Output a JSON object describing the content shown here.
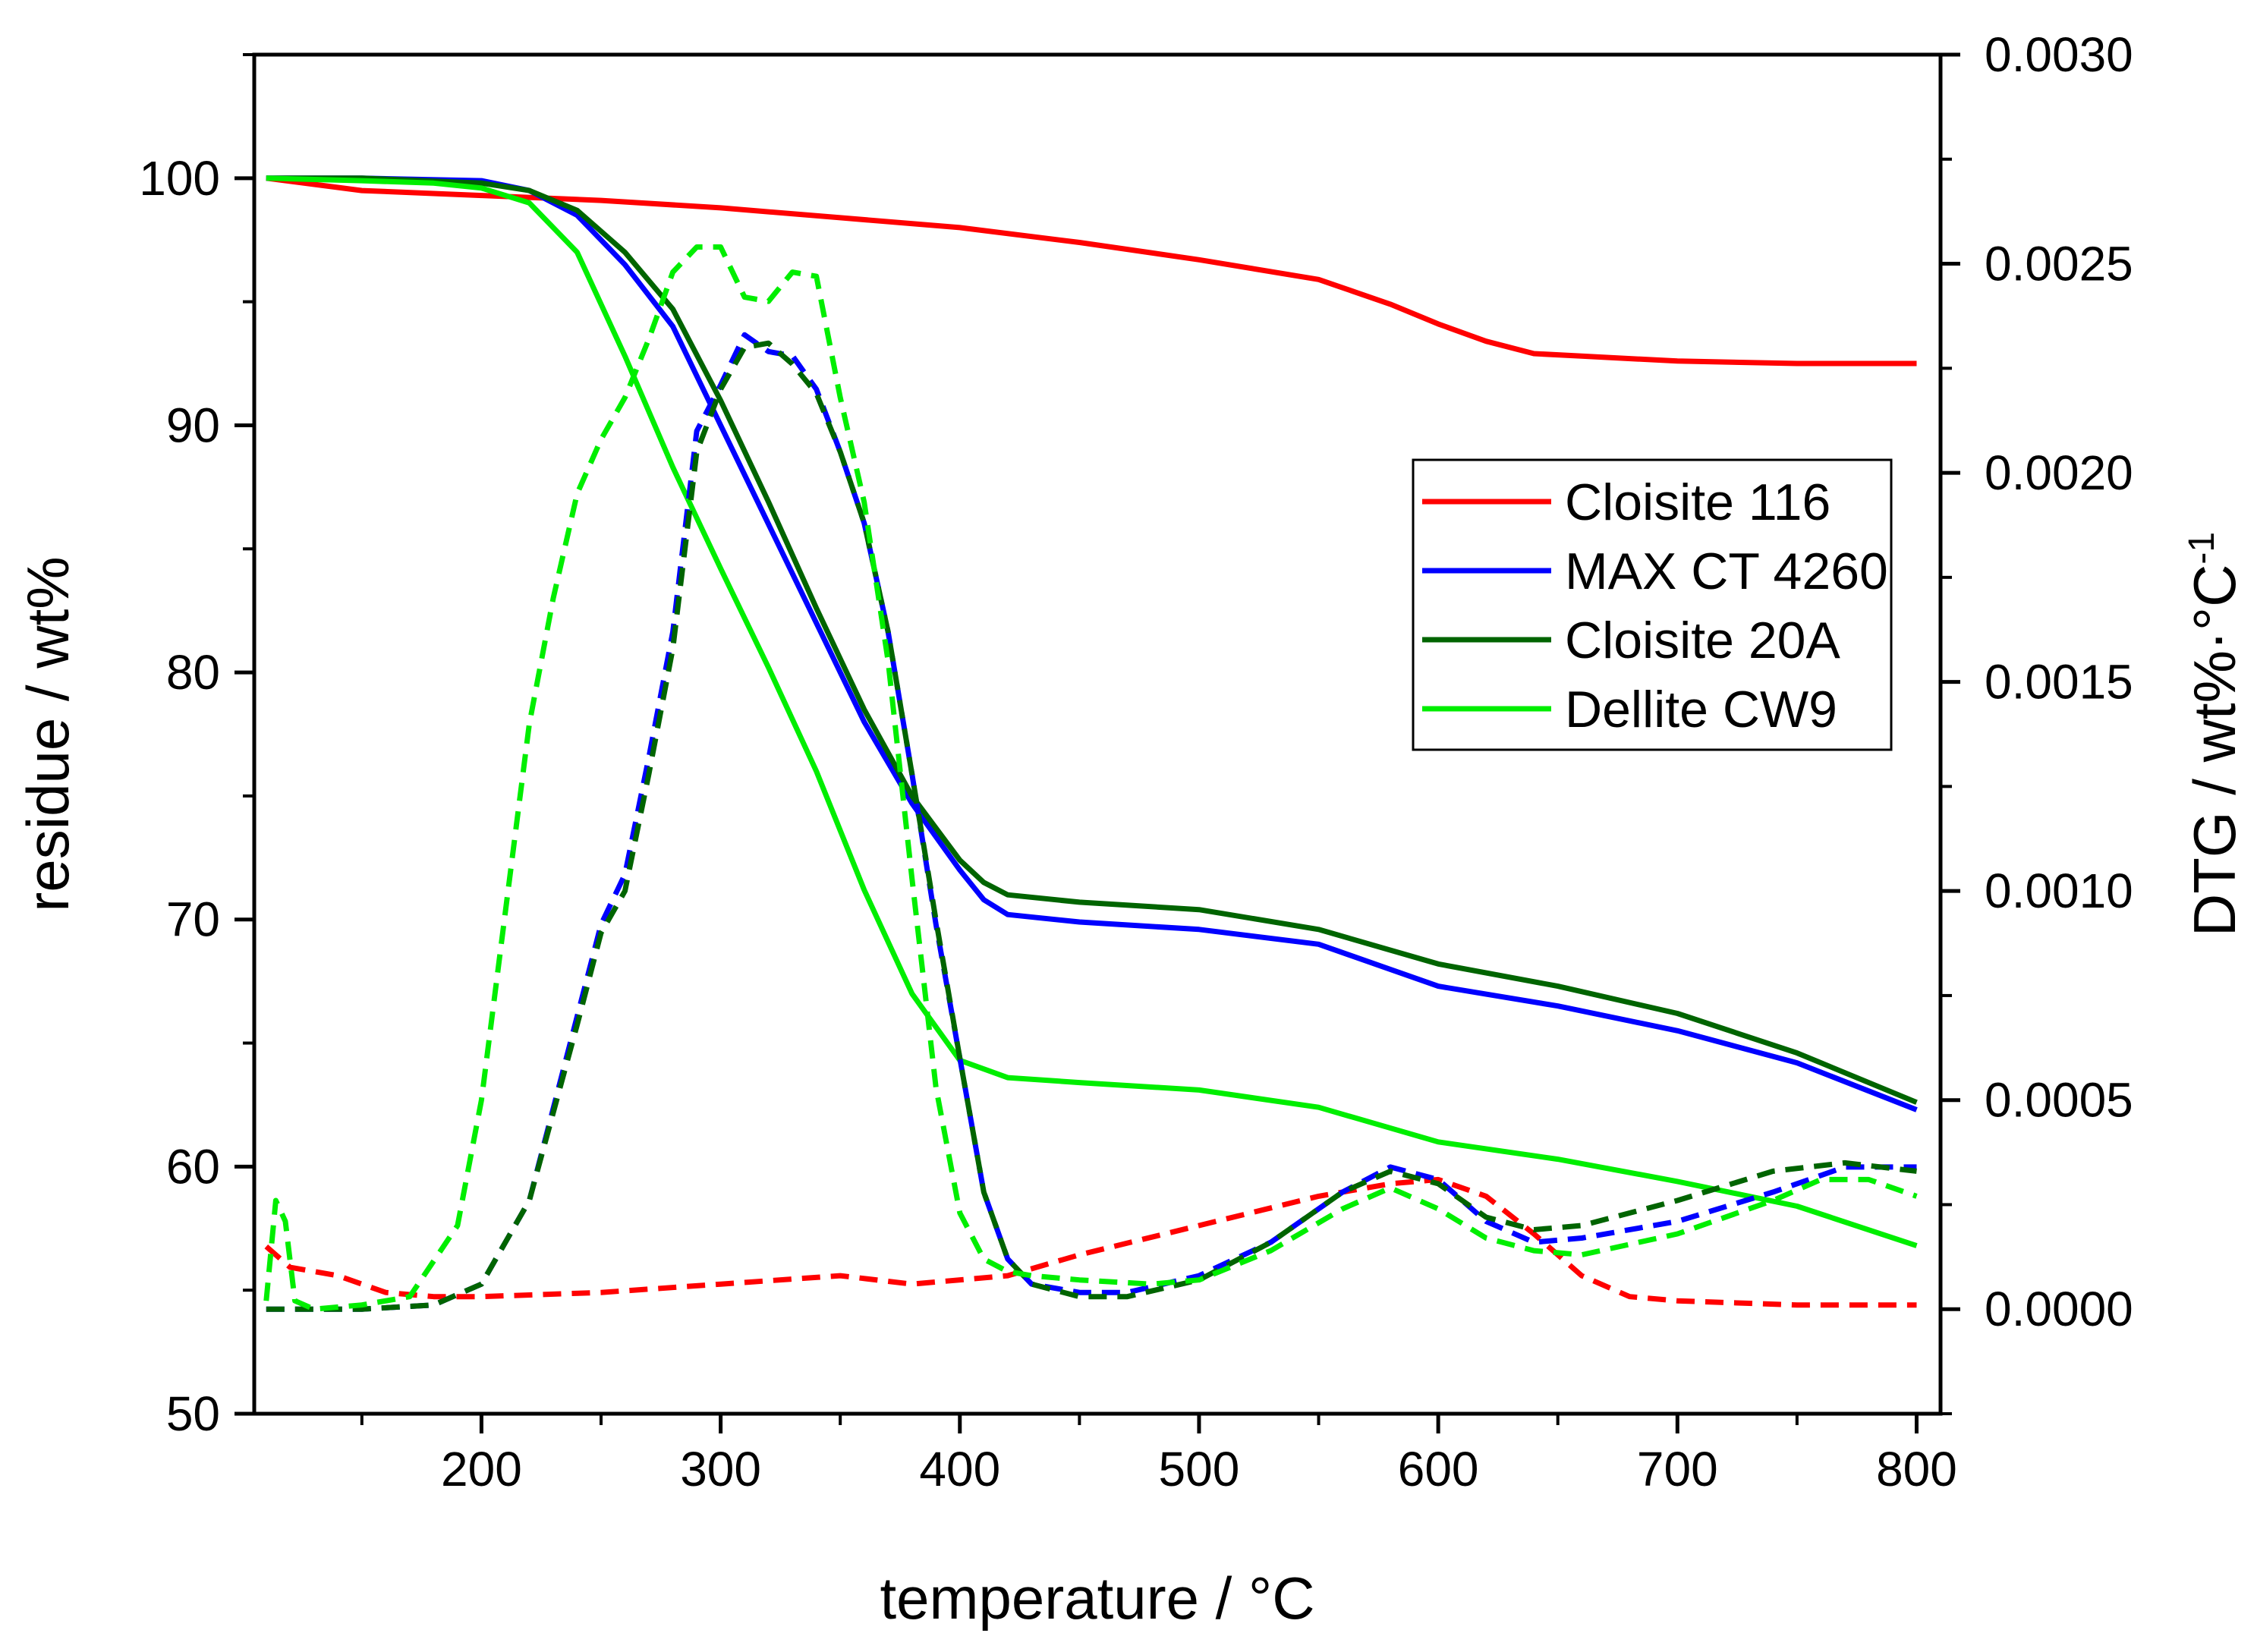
{
  "chart_data": {
    "type": "line",
    "xlabel": "temperature / °C",
    "ylabel": "residue / wt%",
    "y2label": "DTG / wt%·°C",
    "y2label_sup": "-1",
    "xlim": [
      105,
      810
    ],
    "ylim": [
      50,
      105
    ],
    "y2lim": [
      -0.00025,
      0.003
    ],
    "x_ticks": [
      "200",
      "300",
      "400",
      "500",
      "600",
      "700",
      "800"
    ],
    "y_ticks": [
      "50",
      "60",
      "70",
      "80",
      "90",
      "100"
    ],
    "y2_ticks": [
      "0.0000",
      "0.0005",
      "0.0010",
      "0.0015",
      "0.0020",
      "0.0025",
      "0.0030"
    ],
    "legend_position": "right-middle",
    "colors": {
      "Cloisite 116": "#ff0000",
      "MAX CT 4260": "#0000ff",
      "Cloisite 20A": "#006400",
      "Dellite CW9": "#00ee00"
    },
    "series": [
      {
        "name": "Cloisite 116",
        "axis": "left",
        "style": "solid",
        "x": [
          110,
          150,
          200,
          250,
          300,
          350,
          400,
          450,
          500,
          550,
          580,
          600,
          620,
          640,
          660,
          700,
          750,
          800
        ],
        "y": [
          100,
          99.5,
          99.3,
          99.1,
          98.8,
          98.4,
          98.0,
          97.4,
          96.7,
          95.9,
          94.9,
          94.1,
          93.4,
          92.9,
          92.8,
          92.6,
          92.5,
          92.5
        ]
      },
      {
        "name": "MAX CT 4260",
        "axis": "left",
        "style": "solid",
        "x": [
          110,
          150,
          200,
          220,
          240,
          260,
          280,
          300,
          320,
          340,
          360,
          380,
          400,
          410,
          420,
          450,
          500,
          550,
          600,
          650,
          700,
          750,
          800
        ],
        "y": [
          100,
          100,
          99.9,
          99.5,
          98.5,
          96.5,
          94.0,
          90.0,
          86.0,
          82.0,
          78.0,
          74.7,
          72.0,
          70.8,
          70.2,
          69.9,
          69.6,
          69.0,
          67.3,
          66.5,
          65.5,
          64.2,
          62.3
        ]
      },
      {
        "name": "Cloisite 20A",
        "axis": "left",
        "style": "solid",
        "x": [
          110,
          150,
          200,
          220,
          240,
          260,
          280,
          300,
          320,
          340,
          360,
          380,
          400,
          410,
          420,
          450,
          500,
          550,
          600,
          650,
          700,
          750,
          800
        ],
        "y": [
          100,
          100,
          99.8,
          99.5,
          98.7,
          97.0,
          94.7,
          91.0,
          86.9,
          82.6,
          78.5,
          75.0,
          72.4,
          71.5,
          71.0,
          70.7,
          70.4,
          69.6,
          68.2,
          67.3,
          66.2,
          64.6,
          62.6
        ]
      },
      {
        "name": "Dellite CW9",
        "axis": "left",
        "style": "solid",
        "x": [
          110,
          150,
          180,
          200,
          220,
          240,
          260,
          280,
          300,
          320,
          340,
          360,
          380,
          400,
          420,
          450,
          500,
          550,
          600,
          650,
          700,
          750,
          800
        ],
        "y": [
          100,
          99.9,
          99.8,
          99.6,
          99.0,
          97.0,
          92.8,
          88.3,
          84.2,
          80.2,
          76.0,
          71.2,
          67.0,
          64.3,
          63.6,
          63.4,
          63.1,
          62.4,
          61.0,
          60.3,
          59.4,
          58.4,
          56.8
        ]
      },
      {
        "name": "Cloisite 116",
        "axis": "right",
        "style": "dashed",
        "x": [
          110,
          120,
          140,
          160,
          180,
          200,
          250,
          300,
          350,
          380,
          420,
          450,
          500,
          550,
          580,
          600,
          620,
          640,
          660,
          680,
          700,
          750,
          800
        ],
        "y": [
          0.00015,
          0.0001,
          8e-05,
          4e-05,
          3e-05,
          3e-05,
          4e-05,
          6e-05,
          8e-05,
          6e-05,
          8e-05,
          0.00013,
          0.0002,
          0.00027,
          0.0003,
          0.00031,
          0.00027,
          0.00018,
          8e-05,
          3e-05,
          2e-05,
          1e-05,
          1e-05
        ]
      },
      {
        "name": "MAX CT 4260",
        "axis": "right",
        "style": "dashed",
        "x": [
          110,
          150,
          180,
          200,
          220,
          240,
          250,
          260,
          270,
          280,
          290,
          300,
          310,
          320,
          330,
          340,
          350,
          360,
          370,
          380,
          390,
          400,
          410,
          420,
          430,
          450,
          470,
          500,
          530,
          560,
          580,
          600,
          620,
          640,
          660,
          700,
          740,
          770,
          800
        ],
        "y": [
          0.0,
          0.0,
          1e-05,
          6e-05,
          0.00026,
          0.0007,
          0.00092,
          0.00104,
          0.00132,
          0.00162,
          0.0021,
          0.00221,
          0.00233,
          0.00229,
          0.00228,
          0.0022,
          0.00205,
          0.00188,
          0.00162,
          0.00128,
          0.00092,
          0.0006,
          0.00028,
          0.00012,
          6e-05,
          4e-05,
          4e-05,
          8e-05,
          0.00016,
          0.00028,
          0.00034,
          0.00031,
          0.00021,
          0.00016,
          0.00017,
          0.00021,
          0.00028,
          0.00034,
          0.00034
        ]
      },
      {
        "name": "Cloisite 20A",
        "axis": "right",
        "style": "dashed",
        "x": [
          110,
          150,
          180,
          200,
          220,
          240,
          250,
          260,
          270,
          280,
          290,
          300,
          310,
          320,
          330,
          340,
          350,
          360,
          370,
          380,
          390,
          400,
          410,
          420,
          430,
          450,
          470,
          500,
          530,
          560,
          580,
          600,
          620,
          640,
          660,
          700,
          740,
          770,
          800
        ],
        "y": [
          0.0,
          0.0,
          1e-05,
          6e-05,
          0.00026,
          0.00068,
          0.0009,
          0.001,
          0.00128,
          0.00158,
          0.00205,
          0.0022,
          0.0023,
          0.00231,
          0.00226,
          0.00219,
          0.00205,
          0.00188,
          0.00162,
          0.00128,
          0.00093,
          0.0006,
          0.00028,
          0.00012,
          6e-05,
          3e-05,
          3e-05,
          7e-05,
          0.00016,
          0.00028,
          0.00033,
          0.0003,
          0.00022,
          0.00019,
          0.0002,
          0.00026,
          0.00033,
          0.00035,
          0.00033
        ]
      },
      {
        "name": "Dellite CW9",
        "axis": "right",
        "style": "dashed",
        "x": [
          110,
          114,
          118,
          122,
          130,
          150,
          170,
          190,
          200,
          210,
          220,
          230,
          240,
          250,
          260,
          270,
          280,
          290,
          300,
          310,
          320,
          330,
          340,
          350,
          360,
          370,
          380,
          390,
          400,
          410,
          420,
          430,
          450,
          480,
          500,
          530,
          560,
          580,
          600,
          620,
          640,
          660,
          700,
          740,
          760,
          780,
          800
        ],
        "y": [
          2e-05,
          0.00026,
          0.00021,
          2e-05,
          0.0,
          1e-05,
          3e-05,
          0.0002,
          0.0005,
          0.00095,
          0.0014,
          0.0017,
          0.00195,
          0.00208,
          0.00218,
          0.00232,
          0.00248,
          0.00254,
          0.00254,
          0.00242,
          0.00241,
          0.00248,
          0.00247,
          0.00218,
          0.00193,
          0.00155,
          0.00103,
          0.00053,
          0.00023,
          0.00012,
          9e-05,
          8e-05,
          7e-05,
          6e-05,
          7e-05,
          0.00014,
          0.00024,
          0.00029,
          0.00024,
          0.00017,
          0.00014,
          0.00013,
          0.00018,
          0.00026,
          0.00031,
          0.00031,
          0.00027
        ]
      }
    ]
  }
}
